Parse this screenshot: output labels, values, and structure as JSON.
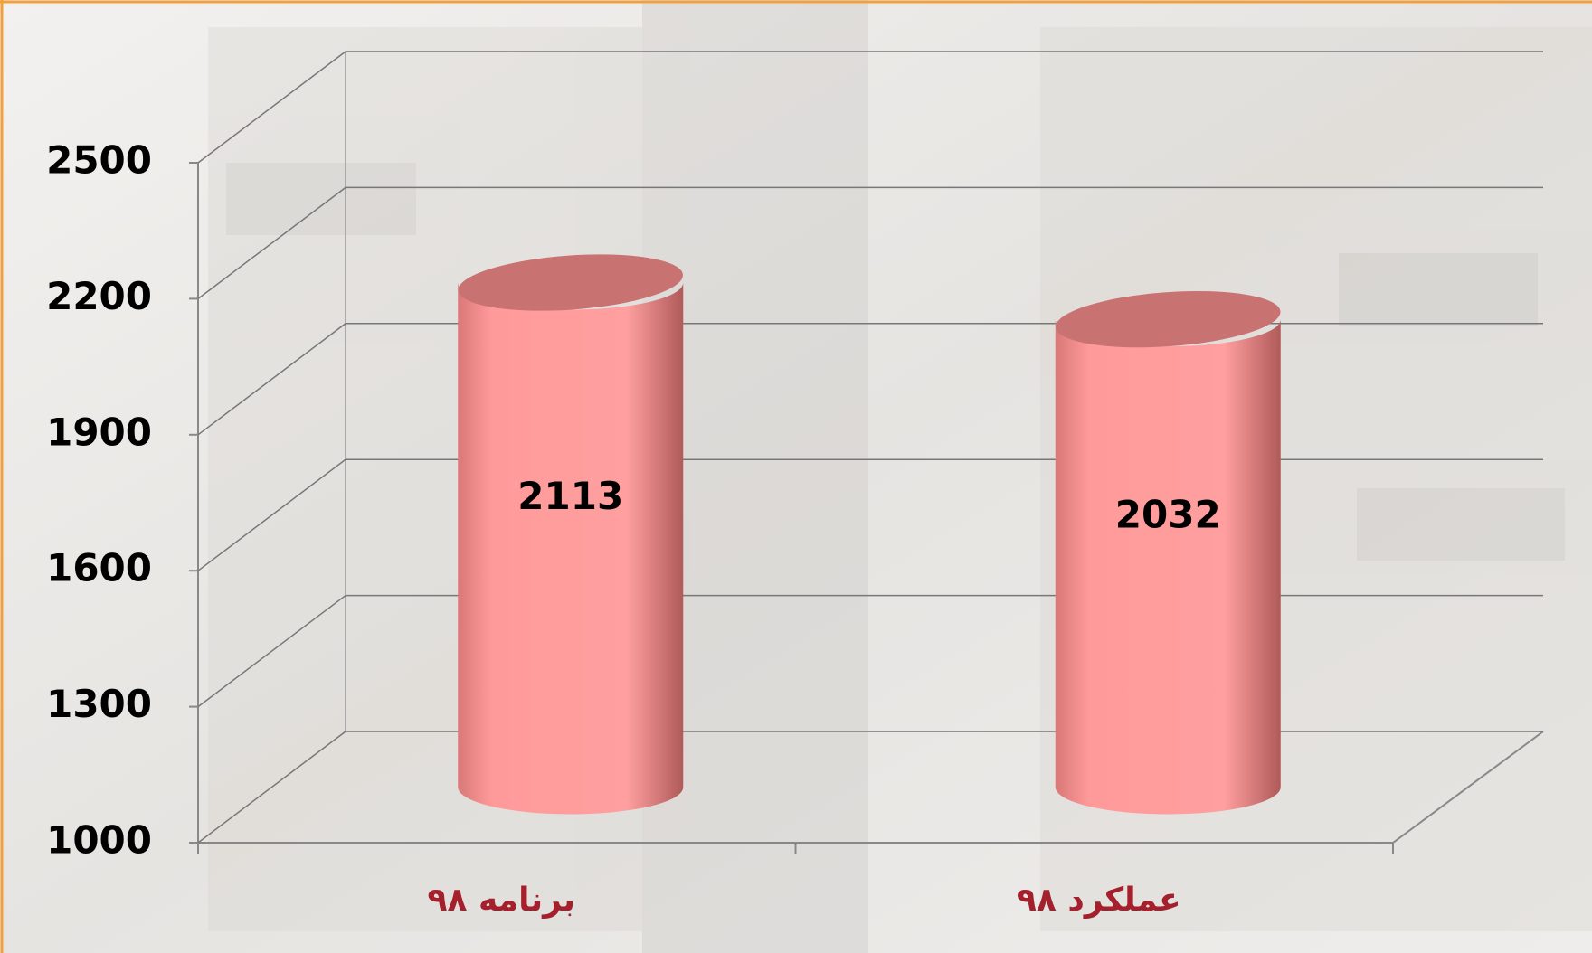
{
  "chart_data": {
    "type": "cylinder",
    "categories": [
      "برنامه ۹۸",
      "عملکرد ۹۸"
    ],
    "values": [
      2113,
      2032
    ],
    "color": "#ff9a9a",
    "ylim": [
      1000,
      2500
    ],
    "yticks": [
      1000,
      1300,
      1600,
      1900,
      2200,
      2500
    ],
    "grid": true
  }
}
